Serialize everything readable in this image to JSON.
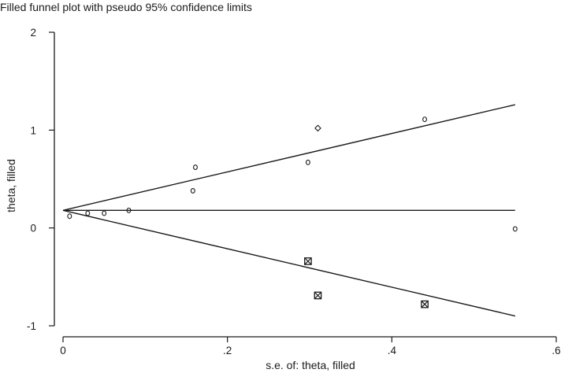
{
  "chart_data": {
    "type": "scatter",
    "title": "Filled funnel plot with pseudo 95% confidence limits",
    "xlabel": "s.e. of: theta, filled",
    "ylabel": "theta, filled",
    "xlim": [
      0,
      0.6
    ],
    "ylim": [
      -1,
      2
    ],
    "x_ticks": [
      0,
      0.2,
      0.4,
      0.6
    ],
    "x_tick_labels": [
      "0",
      ".2",
      ".4",
      ".6"
    ],
    "y_ticks": [
      -1,
      0,
      1,
      2
    ],
    "y_tick_labels": [
      "-1",
      "0",
      "1",
      "2"
    ],
    "grid": false,
    "legend": false,
    "series": [
      {
        "marker": "circle",
        "points": [
          {
            "x": 0.008,
            "y": 0.12
          },
          {
            "x": 0.03,
            "y": 0.15
          },
          {
            "x": 0.05,
            "y": 0.15
          },
          {
            "x": 0.08,
            "y": 0.18
          },
          {
            "x": 0.158,
            "y": 0.38
          },
          {
            "x": 0.161,
            "y": 0.62
          },
          {
            "x": 0.298,
            "y": 0.67
          },
          {
            "x": 0.44,
            "y": 1.11
          },
          {
            "x": 0.55,
            "y": -0.01
          }
        ]
      },
      {
        "marker": "diamond",
        "points": [
          {
            "x": 0.31,
            "y": 1.02
          }
        ]
      },
      {
        "marker": "boxed-x",
        "points": [
          {
            "x": 0.298,
            "y": -0.34
          },
          {
            "x": 0.31,
            "y": -0.69
          },
          {
            "x": 0.44,
            "y": -0.78
          }
        ]
      }
    ],
    "lines": [
      {
        "role": "pooled-estimate",
        "x": [
          0.0,
          0.55
        ],
        "y": [
          0.18,
          0.18
        ]
      },
      {
        "role": "upper-95-limit",
        "x": [
          0.0,
          0.55
        ],
        "y": [
          0.18,
          1.26
        ]
      },
      {
        "role": "lower-95-limit",
        "x": [
          0.0,
          0.55
        ],
        "y": [
          0.18,
          -0.9
        ]
      }
    ]
  }
}
